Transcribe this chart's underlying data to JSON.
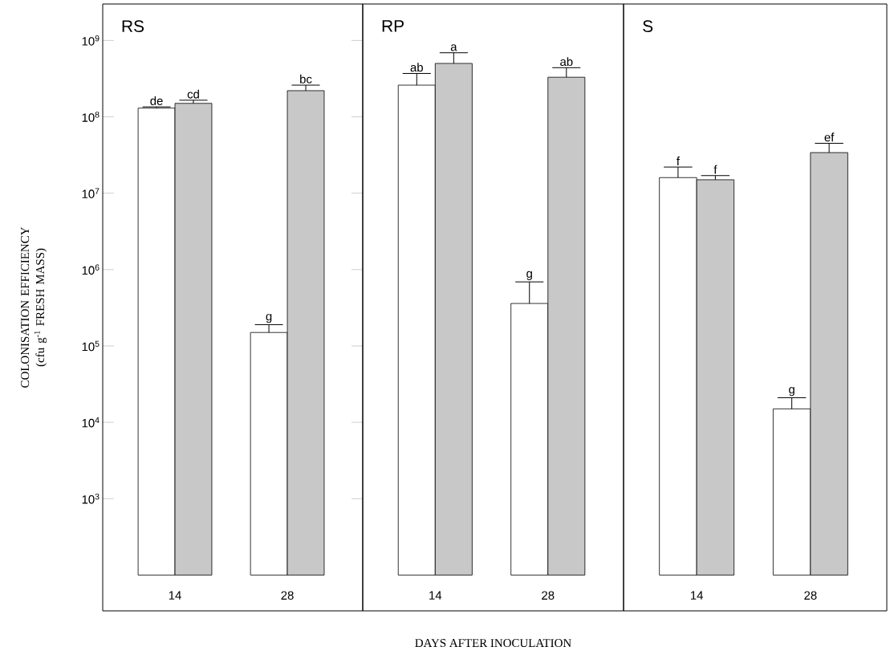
{
  "chart_data": [
    {
      "type": "bar",
      "title": "RS",
      "ylabel": "COLONISATION EFFICIENCY (cfu g$^{-1}$ FRESH MASS)",
      "categories": [
        "14",
        "28"
      ],
      "log": true,
      "ylim": [
        34,
        3000000000
      ],
      "yticks": [
        {
          "value": 1000,
          "label": "10$^{3}$"
        },
        {
          "value": 10000,
          "label": "10$^{4}$"
        },
        {
          "value": 100000,
          "label": "10$^{5}$"
        },
        {
          "value": 1000000,
          "label": "10$^{6}$"
        },
        {
          "value": 10000000,
          "label": "10$^{7}$"
        },
        {
          "value": 100000000,
          "label": "10$^{8}$"
        },
        {
          "value": 1000000000,
          "label": "10$^{9}$"
        }
      ],
      "series": [
        {
          "color": "#ffffff",
          "base": [
            100,
            100
          ],
          "values": [
            129999900,
            149900
          ],
          "errors": [
            [
              130000000,
              135000000
            ],
            [
              150000,
              190000
            ]
          ]
        },
        {
          "color": "#c8c8c8",
          "base": [
            100,
            100
          ],
          "values": [
            149999900,
            219999900
          ],
          "errors": [
            [
              150000000,
              165000000
            ],
            [
              220000000,
              260000000
            ]
          ]
        }
      ],
      "annotations": [
        "de",
        "cd",
        "g",
        "bc"
      ]
    },
    {
      "type": "bar",
      "title": "RP",
      "xlabel": "DAYS AFTER INOCULATION",
      "categories": [
        "14",
        "28"
      ],
      "log": true,
      "ylim": [
        34,
        3000000000
      ],
      "tick_labels": "x",
      "series": [
        {
          "color": "#ffffff",
          "base": [
            100,
            100
          ],
          "values": [
            259999900,
            359900
          ],
          "errors": [
            [
              260000000,
              370000000
            ],
            [
              360000,
              690000
            ]
          ]
        },
        {
          "color": "#c8c8c8",
          "base": [
            100,
            100
          ],
          "values": [
            499999900,
            329999900
          ],
          "errors": [
            [
              500000000,
              690000000
            ],
            [
              330000000,
              440000000
            ]
          ]
        }
      ],
      "annotations": [
        "ab",
        "a",
        "g",
        "ab"
      ]
    },
    {
      "type": "bar",
      "title": "S",
      "categories": [
        "14",
        "28"
      ],
      "log": true,
      "ylim": [
        34,
        3000000000
      ],
      "tick_labels": "x",
      "series": [
        {
          "color": "#ffffff",
          "base": [
            100,
            100
          ],
          "values": [
            15999900,
            14900
          ],
          "errors": [
            [
              16000000,
              22000000
            ],
            [
              15000,
              21000
            ]
          ]
        },
        {
          "color": "#c8c8c8",
          "base": [
            100,
            100
          ],
          "values": [
            14999900,
            33999900
          ],
          "errors": [
            [
              15000000,
              17000000
            ],
            [
              34000000,
              45000000
            ]
          ]
        }
      ],
      "annotations": [
        "f",
        "f",
        "g",
        "ef"
      ]
    }
  ]
}
